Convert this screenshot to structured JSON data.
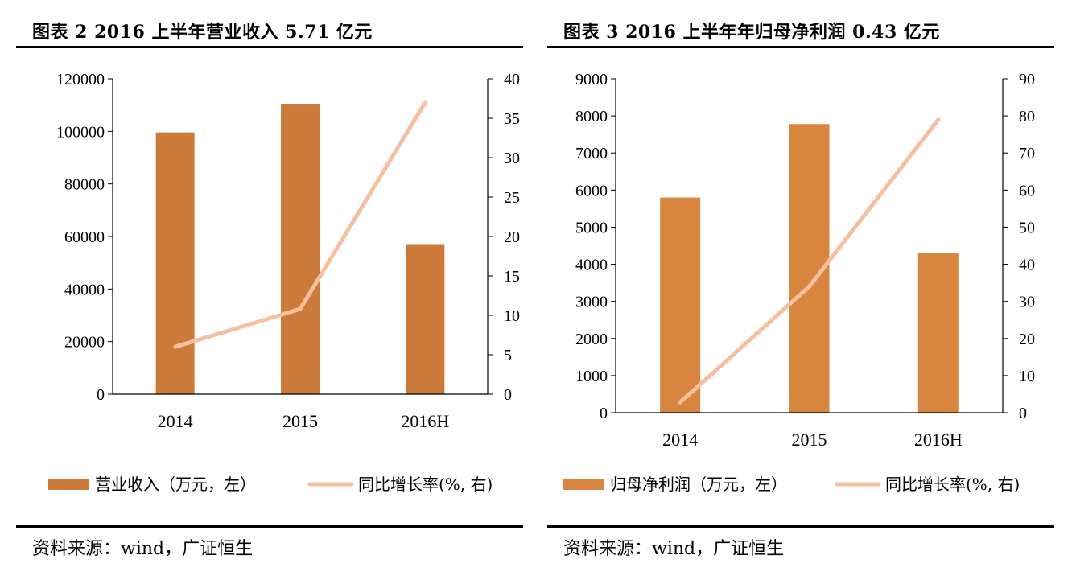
{
  "chart_data": [
    {
      "type": "bar",
      "title": "图表 2 2016 上半年营业收入 5.71 亿元",
      "source": "资料来源：wind，广证恒生",
      "categories": [
        "2014",
        "2015",
        "2016H"
      ],
      "series": [
        {
          "name": "营业收入（万元，左）",
          "type": "bar",
          "axis": "left",
          "values": [
            99600,
            110500,
            57100
          ],
          "color": "#CD7B3A"
        },
        {
          "name": "同比增长率(%, 右)",
          "type": "line",
          "axis": "right",
          "values": [
            6,
            10.8,
            37
          ],
          "color": "#F5BFA0"
        }
      ],
      "left_axis": {
        "min": 0,
        "max": 120000,
        "step": 20000,
        "ticks": [
          "0",
          "20000",
          "40000",
          "60000",
          "80000",
          "100000",
          "120000"
        ]
      },
      "right_axis": {
        "min": 0,
        "max": 40,
        "step": 5,
        "ticks": [
          "0",
          "5",
          "10",
          "15",
          "20",
          "25",
          "30",
          "35",
          "40"
        ]
      },
      "legend_position": "bottom"
    },
    {
      "type": "bar",
      "title": "图表 3 2016 上半年年归母净利润 0.43 亿元",
      "source": "资料来源：wind，广证恒生",
      "categories": [
        "2014",
        "2015",
        "2016H"
      ],
      "series": [
        {
          "name": "归母净利润（万元，左）",
          "type": "bar",
          "axis": "left",
          "values": [
            5800,
            7780,
            4300
          ],
          "color": "#D8863F"
        },
        {
          "name": "同比增长率(%, 右)",
          "type": "line",
          "axis": "right",
          "values": [
            2.8,
            34,
            79
          ],
          "color": "#F5BFA0"
        }
      ],
      "left_axis": {
        "min": 0,
        "max": 9000,
        "step": 1000,
        "ticks": [
          "0",
          "1000",
          "2000",
          "3000",
          "4000",
          "5000",
          "6000",
          "7000",
          "8000",
          "9000"
        ]
      },
      "right_axis": {
        "min": 0,
        "max": 90,
        "step": 10,
        "ticks": [
          "0",
          "10",
          "20",
          "30",
          "40",
          "50",
          "60",
          "70",
          "80",
          "90"
        ]
      },
      "legend_position": "bottom"
    }
  ]
}
